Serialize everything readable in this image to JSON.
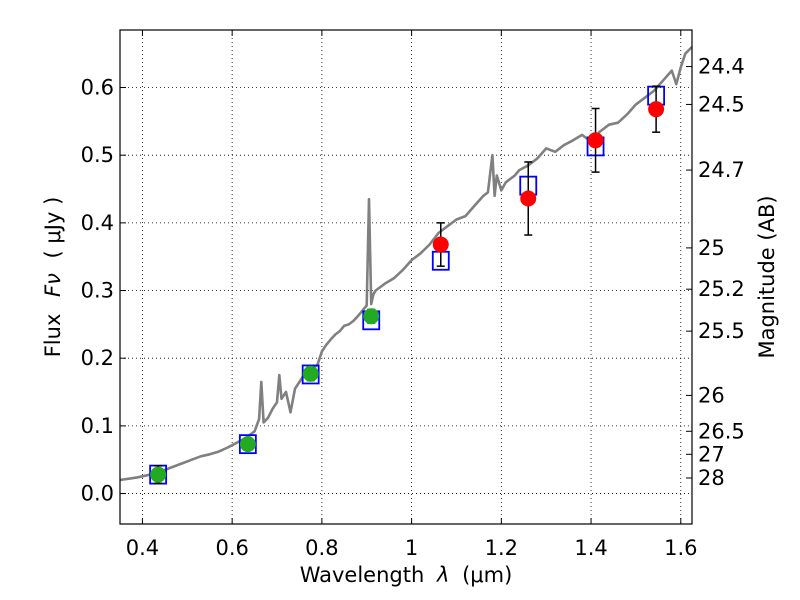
{
  "chart_data": {
    "type": "scatter",
    "xlabel_text": "Wavelength",
    "xlabel_symbol": "λ",
    "xlabel_unit": "(μm)",
    "ylabel_text": "Flux",
    "ylabel_symbol": "Fν",
    "ylabel_unit": "( μJy )",
    "ylabel_right": "Magnitude (AB)",
    "xlim": [
      0.35,
      1.625
    ],
    "ylim": [
      -0.045,
      0.685
    ],
    "grid": true,
    "x_ticks": [
      0.4,
      0.6,
      0.8,
      1.0,
      1.2,
      1.4,
      1.6
    ],
    "x_tick_labels": [
      "0.4",
      "0.6",
      "0.8",
      "1",
      "1.2",
      "1.4",
      "1.6"
    ],
    "y_ticks": [
      0.0,
      0.1,
      0.2,
      0.3,
      0.4,
      0.5,
      0.6
    ],
    "y_tick_labels": [
      "0.0",
      "0.1",
      "0.2",
      "0.3",
      "0.4",
      "0.5",
      "0.6"
    ],
    "right_ticks": [
      {
        "flux": 0.631,
        "label": "24.4"
      },
      {
        "flux": 0.575,
        "label": "24.5"
      },
      {
        "flux": 0.478,
        "label": "24.7"
      },
      {
        "flux": 0.363,
        "label": "25"
      },
      {
        "flux": 0.302,
        "label": "25.2"
      },
      {
        "flux": 0.24,
        "label": "25.5"
      },
      {
        "flux": 0.145,
        "label": "26"
      },
      {
        "flux": 0.092,
        "label": "26.5"
      },
      {
        "flux": 0.058,
        "label": "27"
      },
      {
        "flux": 0.023,
        "label": "28"
      }
    ],
    "model_spectrum": {
      "name": "model",
      "color": "#808080",
      "x": [
        0.35,
        0.37,
        0.39,
        0.41,
        0.43,
        0.45,
        0.47,
        0.49,
        0.51,
        0.53,
        0.55,
        0.57,
        0.59,
        0.61,
        0.63,
        0.65,
        0.66,
        0.665,
        0.67,
        0.68,
        0.69,
        0.7,
        0.705,
        0.71,
        0.72,
        0.73,
        0.74,
        0.75,
        0.76,
        0.77,
        0.78,
        0.79,
        0.8,
        0.81,
        0.82,
        0.83,
        0.84,
        0.85,
        0.86,
        0.87,
        0.88,
        0.89,
        0.9,
        0.905,
        0.91,
        0.915,
        0.92,
        0.94,
        0.96,
        0.98,
        1.0,
        1.02,
        1.04,
        1.06,
        1.08,
        1.1,
        1.12,
        1.14,
        1.16,
        1.17,
        1.18,
        1.185,
        1.19,
        1.2,
        1.21,
        1.22,
        1.23,
        1.24,
        1.26,
        1.28,
        1.3,
        1.32,
        1.34,
        1.36,
        1.38,
        1.4,
        1.42,
        1.44,
        1.46,
        1.48,
        1.5,
        1.52,
        1.54,
        1.56,
        1.58,
        1.59,
        1.6,
        1.61,
        1.625
      ],
      "y": [
        0.02,
        0.022,
        0.024,
        0.027,
        0.03,
        0.035,
        0.04,
        0.045,
        0.05,
        0.055,
        0.058,
        0.062,
        0.068,
        0.075,
        0.082,
        0.092,
        0.11,
        0.165,
        0.105,
        0.112,
        0.125,
        0.135,
        0.175,
        0.14,
        0.15,
        0.12,
        0.155,
        0.165,
        0.175,
        0.18,
        0.185,
        0.19,
        0.21,
        0.22,
        0.228,
        0.235,
        0.24,
        0.248,
        0.25,
        0.255,
        0.262,
        0.27,
        0.278,
        0.435,
        0.28,
        0.295,
        0.3,
        0.31,
        0.318,
        0.33,
        0.345,
        0.355,
        0.368,
        0.385,
        0.395,
        0.405,
        0.41,
        0.425,
        0.44,
        0.445,
        0.5,
        0.44,
        0.47,
        0.448,
        0.46,
        0.465,
        0.47,
        0.478,
        0.485,
        0.495,
        0.51,
        0.505,
        0.515,
        0.522,
        0.53,
        0.52,
        0.535,
        0.545,
        0.548,
        0.56,
        0.575,
        0.585,
        0.595,
        0.61,
        0.625,
        0.605,
        0.63,
        0.65,
        0.66
      ]
    },
    "series": [
      {
        "name": "observed-green",
        "color": "#22aa22",
        "x": [
          0.435,
          0.635,
          0.775,
          0.91
        ],
        "y": [
          0.028,
          0.073,
          0.177,
          0.262
        ],
        "err": [
          0.013,
          0.006,
          0.01,
          0.01
        ]
      },
      {
        "name": "observed-red",
        "color": "#ff0000",
        "x": [
          1.065,
          1.26,
          1.41,
          1.545
        ],
        "y": [
          0.368,
          0.436,
          0.522,
          0.568
        ],
        "err": [
          0.032,
          0.054,
          0.047,
          0.034
        ]
      },
      {
        "name": "model-photometry",
        "color": "#0000ff",
        "x": [
          0.435,
          0.635,
          0.775,
          0.91,
          1.065,
          1.26,
          1.41,
          1.545
        ],
        "y": [
          0.028,
          0.073,
          0.176,
          0.256,
          0.344,
          0.455,
          0.513,
          0.588
        ]
      }
    ]
  }
}
